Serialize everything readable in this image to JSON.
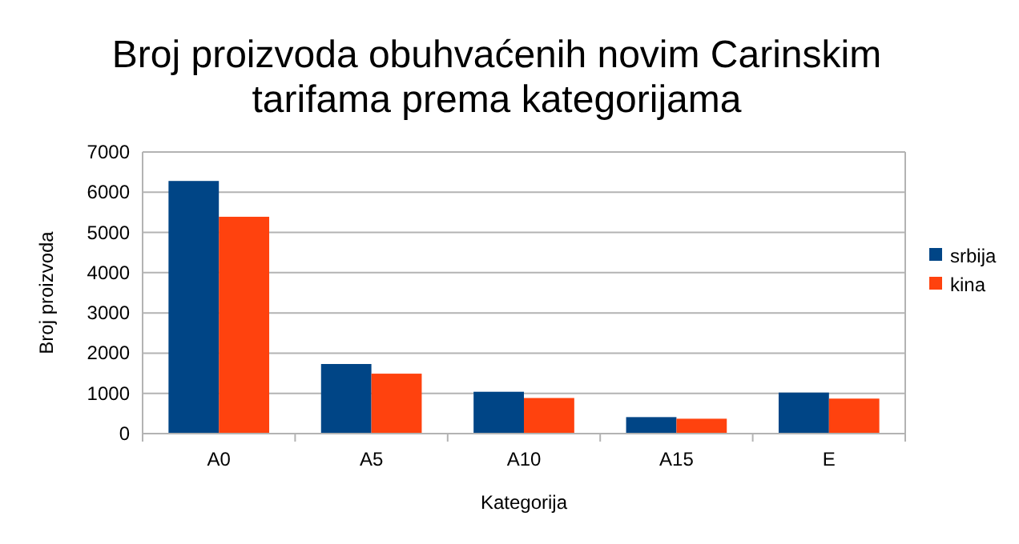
{
  "chart_data": {
    "type": "bar",
    "title": "Broj proizvoda obuhvaćenih novim Carinskim tarifama prema kategorijama",
    "xlabel": "Kategorija",
    "ylabel": "Broj proizvoda",
    "categories": [
      "A0",
      "A5",
      "A10",
      "A15",
      "E"
    ],
    "series": [
      {
        "name": "srbija",
        "color": "#004586",
        "values": [
          6280,
          1730,
          1040,
          410,
          1020
        ]
      },
      {
        "name": "kina",
        "color": "#ff420e",
        "values": [
          5390,
          1490,
          885,
          370,
          870
        ]
      }
    ],
    "ylim": [
      0,
      7000
    ],
    "yticks": [
      0,
      1000,
      2000,
      3000,
      4000,
      5000,
      6000,
      7000
    ],
    "grid": "y",
    "legend": "right"
  }
}
